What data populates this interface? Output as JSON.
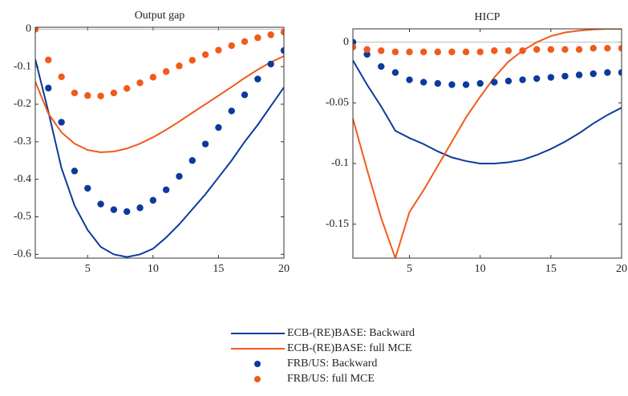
{
  "chart_data": [
    {
      "type": "line",
      "title": "Output gap",
      "x": [
        1,
        2,
        3,
        4,
        5,
        6,
        7,
        8,
        9,
        10,
        11,
        12,
        13,
        14,
        15,
        16,
        17,
        18,
        19,
        20
      ],
      "xlim": [
        1,
        20
      ],
      "xticks": [
        5,
        10,
        15,
        20
      ],
      "ylim": [
        -0.61,
        0.005
      ],
      "yticks": [
        0,
        -0.1,
        -0.2,
        -0.3,
        -0.4,
        -0.5,
        -0.6
      ],
      "zero_line": true,
      "series": [
        {
          "name": "ECB-(RE)BASE: Backward",
          "color": "#0c3a9c",
          "style": "line",
          "values": [
            -0.08,
            -0.22,
            -0.37,
            -0.47,
            -0.535,
            -0.58,
            -0.6,
            -0.607,
            -0.6,
            -0.585,
            -0.555,
            -0.52,
            -0.48,
            -0.44,
            -0.395,
            -0.35,
            -0.3,
            -0.255,
            -0.205,
            -0.155
          ]
        },
        {
          "name": "ECB-(RE)BASE: full MCE",
          "color": "#f25a1a",
          "style": "line",
          "values": [
            -0.14,
            -0.225,
            -0.275,
            -0.305,
            -0.322,
            -0.328,
            -0.326,
            -0.318,
            -0.305,
            -0.288,
            -0.268,
            -0.246,
            -0.223,
            -0.2,
            -0.177,
            -0.154,
            -0.13,
            -0.108,
            -0.088,
            -0.072
          ]
        },
        {
          "name": "FRB/US: Backward",
          "color": "#0c3a9c",
          "style": "marker",
          "values": [
            0,
            -0.157,
            -0.248,
            -0.378,
            -0.424,
            -0.466,
            -0.481,
            -0.486,
            -0.476,
            -0.456,
            -0.428,
            -0.392,
            -0.35,
            -0.306,
            -0.262,
            -0.218,
            -0.175,
            -0.133,
            -0.093,
            -0.057
          ]
        },
        {
          "name": "FRB/US: full MCE",
          "color": "#f25a1a",
          "style": "marker",
          "values": [
            0,
            -0.082,
            -0.127,
            -0.17,
            -0.177,
            -0.178,
            -0.17,
            -0.158,
            -0.143,
            -0.128,
            -0.113,
            -0.098,
            -0.083,
            -0.068,
            -0.056,
            -0.044,
            -0.033,
            -0.023,
            -0.015,
            -0.008
          ]
        }
      ]
    },
    {
      "type": "line",
      "title": "HICP",
      "x": [
        1,
        2,
        3,
        4,
        5,
        6,
        7,
        8,
        9,
        10,
        11,
        12,
        13,
        14,
        15,
        16,
        17,
        18,
        19,
        20
      ],
      "xlim": [
        1,
        20
      ],
      "xticks": [
        5,
        10,
        15,
        20
      ],
      "ylim": [
        -0.178,
        0.011
      ],
      "yticks": [
        0,
        -0.05,
        -0.1,
        -0.15
      ],
      "zero_line": true,
      "series": [
        {
          "color": "#0c3a9c",
          "style": "line",
          "values": [
            -0.015,
            -0.035,
            -0.053,
            -0.073,
            -0.079,
            -0.084,
            -0.09,
            -0.095,
            -0.098,
            -0.1,
            -0.1,
            -0.099,
            -0.097,
            -0.093,
            -0.088,
            -0.082,
            -0.075,
            -0.067,
            -0.06,
            -0.054
          ]
        },
        {
          "color": "#f25a1a",
          "style": "line",
          "values": [
            -0.063,
            -0.105,
            -0.145,
            -0.178,
            -0.14,
            -0.122,
            -0.102,
            -0.082,
            -0.062,
            -0.045,
            -0.029,
            -0.016,
            -0.007,
            0,
            0.005,
            0.008,
            0.0095,
            0.0105,
            0.011,
            0.011
          ]
        },
        {
          "color": "#0c3a9c",
          "style": "marker",
          "values": [
            0,
            -0.01,
            -0.02,
            -0.025,
            -0.031,
            -0.033,
            -0.034,
            -0.035,
            -0.035,
            -0.034,
            -0.033,
            -0.032,
            -0.031,
            -0.03,
            -0.029,
            -0.028,
            -0.027,
            -0.026,
            -0.025,
            -0.025
          ]
        },
        {
          "color": "#f25a1a",
          "style": "marker",
          "values": [
            -0.004,
            -0.006,
            -0.007,
            -0.008,
            -0.008,
            -0.008,
            -0.008,
            -0.008,
            -0.008,
            -0.008,
            -0.007,
            -0.007,
            -0.007,
            -0.006,
            -0.006,
            -0.006,
            -0.006,
            -0.005,
            -0.005,
            -0.005
          ]
        }
      ]
    }
  ]
}
